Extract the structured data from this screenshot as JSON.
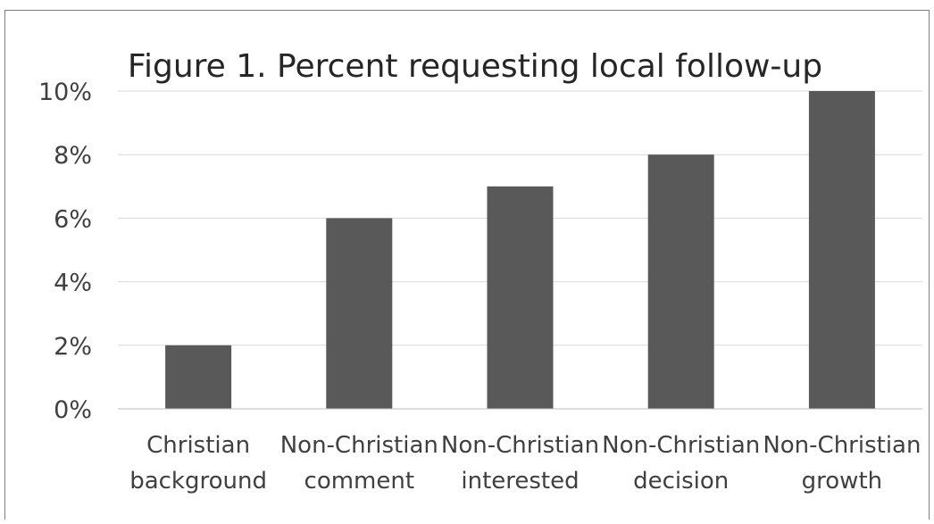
{
  "chart_data": {
    "type": "bar",
    "title": "Figure 1. Percent requesting local follow-up",
    "categories": [
      [
        "Christian",
        "background"
      ],
      [
        "Non-Christian",
        "comment"
      ],
      [
        "Non-Christian",
        "interested"
      ],
      [
        "Non-Christian",
        "decision"
      ],
      [
        "Non-Christian",
        "growth"
      ]
    ],
    "values": [
      2,
      6,
      7,
      8,
      10
    ],
    "value_unit": "%",
    "ylim": [
      0,
      10
    ],
    "yticks": [
      0,
      2,
      4,
      6,
      8,
      10
    ],
    "ytick_labels": [
      "0%",
      "2%",
      "4%",
      "6%",
      "8%",
      "10%"
    ],
    "grid": true,
    "legend": "none",
    "colors": {
      "bar": "#595959",
      "grid": "#d9d9d9",
      "axis": "#bfbfbf",
      "text": "#404040",
      "frame": "#7f7f7f"
    }
  }
}
